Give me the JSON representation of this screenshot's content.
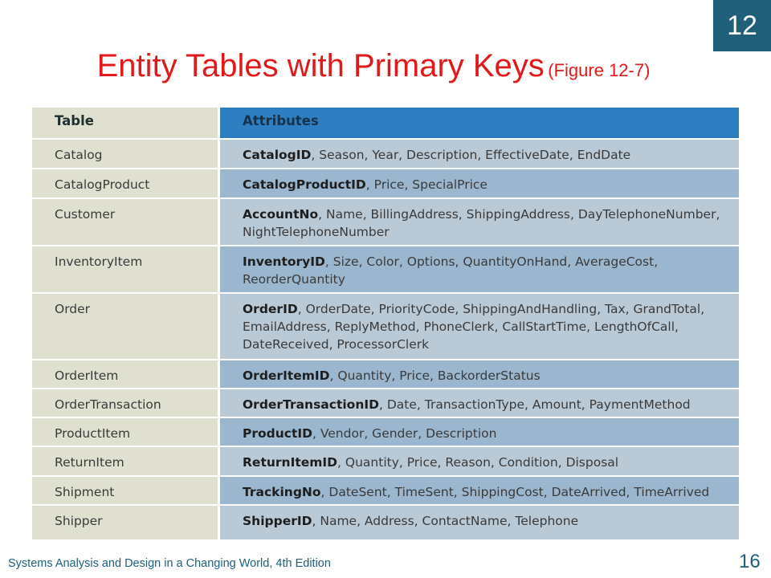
{
  "slide": {
    "chapter_number": "12",
    "title_main": "Entity Tables with Primary Keys",
    "title_sub": "(Figure 12-7)",
    "footer_text": "Systems Analysis and Design in a Changing World, 4th Edition",
    "page_number": "16"
  },
  "table": {
    "header": {
      "table": "Table",
      "attributes": "Attributes"
    },
    "rows": [
      {
        "table": "Catalog",
        "primary_key": "CatalogID",
        "attributes_rest": ", Season, Year, Description, EffectiveDate, EndDate"
      },
      {
        "table": "CatalogProduct",
        "primary_key": "CatalogProductID",
        "attributes_rest": ", Price, SpecialPrice"
      },
      {
        "table": "Customer",
        "primary_key": "AccountNo",
        "attributes_rest": ", Name, BillingAddress, ShippingAddress, DayTelephoneNumber, NightTelephoneNumber"
      },
      {
        "table": "InventoryItem",
        "primary_key": "InventoryID",
        "attributes_rest": ", Size, Color, Options, QuantityOnHand, AverageCost, ReorderQuantity"
      },
      {
        "table": "Order",
        "primary_key": "OrderID",
        "attributes_rest": ", OrderDate, PriorityCode, ShippingAndHandling, Tax, GrandTotal, EmailAddress, ReplyMethod, PhoneClerk, CallStartTime, LengthOfCall, DateReceived, ProcessorClerk"
      },
      {
        "table": "OrderItem",
        "primary_key": "OrderItemID",
        "attributes_rest": ", Quantity, Price, BackorderStatus"
      },
      {
        "table": "OrderTransaction",
        "primary_key": "OrderTransactionID",
        "attributes_rest": ", Date, TransactionType, Amount, PaymentMethod"
      },
      {
        "table": "ProductItem",
        "primary_key": "ProductID",
        "attributes_rest": ", Vendor, Gender, Description"
      },
      {
        "table": "ReturnItem",
        "primary_key": "ReturnItemID",
        "attributes_rest": ", Quantity, Price, Reason, Condition, Disposal"
      },
      {
        "table": "Shipment",
        "primary_key": "TrackingNo",
        "attributes_rest": ", DateSent, TimeSent, ShippingCost, DateArrived, TimeArrived"
      },
      {
        "table": "Shipper",
        "primary_key": "ShipperID",
        "attributes_rest": ", Name, Address, ContactName, Telephone"
      }
    ]
  },
  "colors": {
    "title": "#e01a1a",
    "chapter_box": "#1f5f7a",
    "header_left": "#b7c96a",
    "header_right": "#2e7fc2",
    "row_left": "#dfe0cf",
    "row_right_light": "#b9c9d6",
    "row_right_dark": "#9bb7cf"
  }
}
